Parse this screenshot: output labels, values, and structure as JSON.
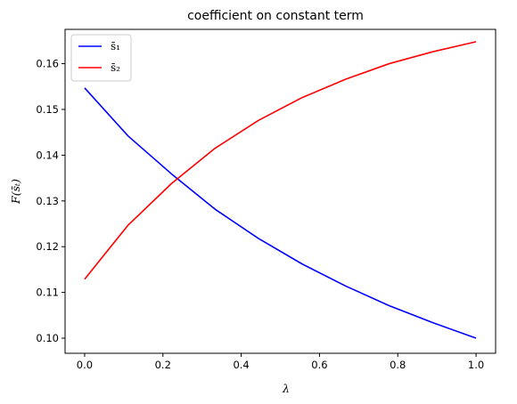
{
  "chart_data": {
    "type": "line",
    "title": "coefficient on constant term",
    "xlabel": "λ",
    "ylabel": "F(s̄ₜ)",
    "xlim": [
      -0.05,
      1.05
    ],
    "ylim": [
      0.0967,
      0.1675
    ],
    "xticks": [
      0.0,
      0.2,
      0.4,
      0.6,
      0.8,
      1.0
    ],
    "xtick_labels": [
      "0.0",
      "0.2",
      "0.4",
      "0.6",
      "0.8",
      "1.0"
    ],
    "yticks": [
      0.1,
      0.11,
      0.12,
      0.13,
      0.14,
      0.15,
      0.16
    ],
    "ytick_labels": [
      "0.10",
      "0.11",
      "0.12",
      "0.13",
      "0.14",
      "0.15",
      "0.16"
    ],
    "grid": false,
    "legend_position": "top-left",
    "x": [
      0.0,
      0.111,
      0.222,
      0.333,
      0.444,
      0.556,
      0.667,
      0.778,
      0.889,
      1.0
    ],
    "series": [
      {
        "name": "s̄₁",
        "color": "#0000ff",
        "values": [
          0.1547,
          0.1442,
          0.1359,
          0.1282,
          0.1218,
          0.1162,
          0.1114,
          0.1071,
          0.1034,
          0.1
        ]
      },
      {
        "name": "s̄₂",
        "color": "#ff0000",
        "values": [
          0.1129,
          0.1247,
          0.1338,
          0.1415,
          0.1476,
          0.1526,
          0.1566,
          0.16,
          0.1626,
          0.1648
        ]
      }
    ]
  }
}
